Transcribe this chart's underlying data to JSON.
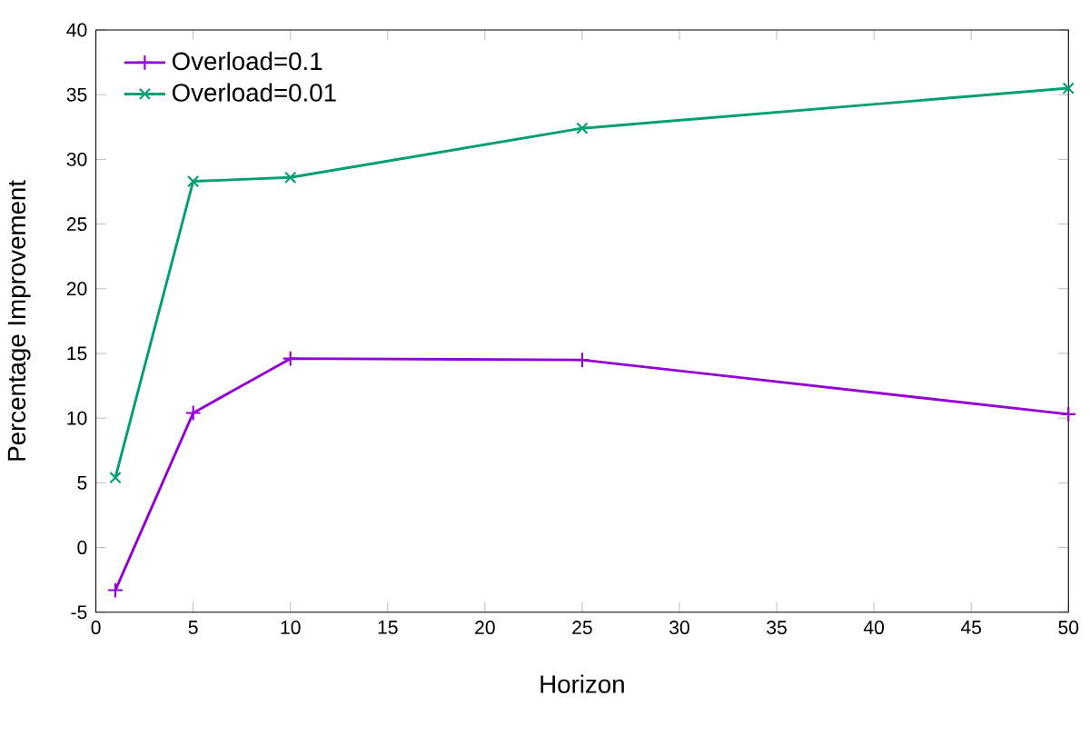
{
  "chart_data": {
    "type": "line",
    "xlabel": "Horizon",
    "ylabel": "Percentage Improvement",
    "x": [
      1,
      5,
      10,
      25,
      50
    ],
    "series": [
      {
        "name": "Overload=0.1",
        "color": "#9400d3",
        "marker": "plus",
        "values": [
          -3.3,
          10.4,
          14.6,
          14.5,
          10.3
        ]
      },
      {
        "name": "Overload=0.01",
        "color": "#009e73",
        "marker": "cross",
        "values": [
          5.4,
          28.3,
          28.6,
          32.4,
          35.5
        ]
      }
    ],
    "xlim": [
      0,
      50
    ],
    "xticks": [
      0,
      5,
      10,
      15,
      20,
      25,
      30,
      35,
      40,
      45,
      50
    ],
    "ylim": [
      -5,
      40
    ],
    "yticks": [
      -5,
      0,
      5,
      10,
      15,
      20,
      25,
      30,
      35,
      40
    ],
    "legend": "top left",
    "grid": false,
    "line_style": "solid"
  }
}
